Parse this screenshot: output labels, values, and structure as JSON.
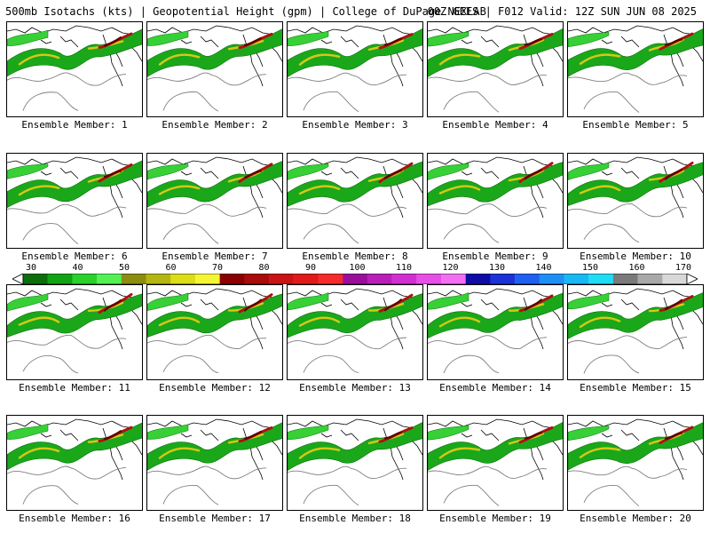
{
  "header": {
    "title_left": "500mb Isotachs (kts) | Geopotential Height (gpm) | College of DuPage NEXLAB",
    "title_right": "00Z GEFS | F012 Valid: 12Z SUN JUN 08 2025"
  },
  "members": [
    {
      "label": "Ensemble Member: 1"
    },
    {
      "label": "Ensemble Member: 2"
    },
    {
      "label": "Ensemble Member: 3"
    },
    {
      "label": "Ensemble Member: 4"
    },
    {
      "label": "Ensemble Member: 5"
    },
    {
      "label": "Ensemble Member: 6"
    },
    {
      "label": "Ensemble Member: 7"
    },
    {
      "label": "Ensemble Member: 8"
    },
    {
      "label": "Ensemble Member: 9"
    },
    {
      "label": "Ensemble Member: 10"
    },
    {
      "label": "Ensemble Member: 11"
    },
    {
      "label": "Ensemble Member: 12"
    },
    {
      "label": "Ensemble Member: 13"
    },
    {
      "label": "Ensemble Member: 14"
    },
    {
      "label": "Ensemble Member: 15"
    },
    {
      "label": "Ensemble Member: 16"
    },
    {
      "label": "Ensemble Member: 17"
    },
    {
      "label": "Ensemble Member: 18"
    },
    {
      "label": "Ensemble Member: 19"
    },
    {
      "label": "Ensemble Member: 20"
    }
  ],
  "colorbar": {
    "tick_labels": [
      "30",
      "40",
      "50",
      "60",
      "70",
      "80",
      "90",
      "100",
      "110",
      "120",
      "130",
      "140",
      "150",
      "160",
      "170"
    ],
    "colors": [
      "#0b6e0b",
      "#12a312",
      "#2ad12a",
      "#54f054",
      "#8c8c10",
      "#b5b512",
      "#dcdc18",
      "#f5f534",
      "#8b0000",
      "#a80c0c",
      "#c81414",
      "#e01a1a",
      "#f52a2a",
      "#9b0e9b",
      "#b81fb8",
      "#d22fd2",
      "#e84ee8",
      "#f26ef2",
      "#0d0da6",
      "#1a33d6",
      "#2060f0",
      "#1f8ff5",
      "#18b8f5",
      "#20dcf5",
      "#7a7a7a",
      "#a8a8a8",
      "#d8d8d8"
    ],
    "arrow_color": "#ffffff"
  },
  "map_colors": {
    "background": "#ffffff",
    "jet_green": "#1aa81a",
    "jet_light": "#37d037",
    "jet_yellow": "#d8c818",
    "jet_red": "#b01010",
    "jet_core": "#5a0000",
    "height_contour": "#7f7f7f",
    "coastline": "#000000"
  }
}
